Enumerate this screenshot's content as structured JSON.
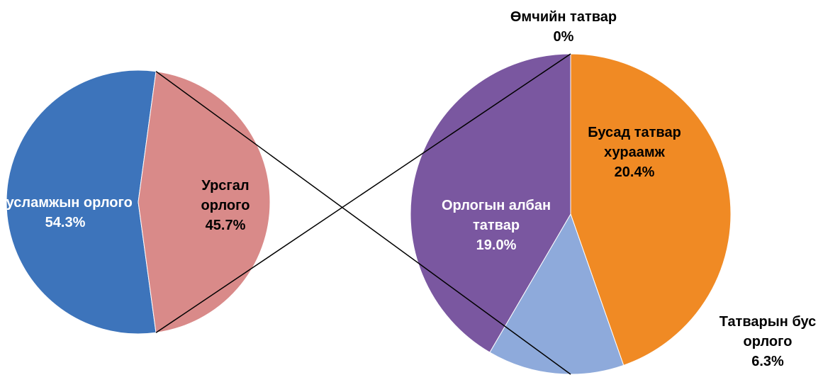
{
  "chart_data": [
    {
      "type": "pie",
      "categories": [
        "Тусламжын орлого",
        "Урсгал орлого"
      ],
      "values": [
        54.3,
        45.7
      ],
      "value_labels": [
        "54.3%",
        "45.7%"
      ],
      "colors": [
        "#3d74bb",
        "#d98a89"
      ]
    },
    {
      "type": "pie",
      "categories": [
        "Өмчийн татвар",
        "Бусад татвар хураамж",
        "Татварын бус орлого",
        "Орлогын албан татвар"
      ],
      "values": [
        0,
        20.4,
        6.3,
        19.0
      ],
      "value_labels": [
        "0%",
        "20.4%",
        "6.3%",
        "19.0%"
      ],
      "colors": [
        "#c0504d",
        "#f08a24",
        "#8eaadb",
        "#7a57a0"
      ]
    }
  ]
}
